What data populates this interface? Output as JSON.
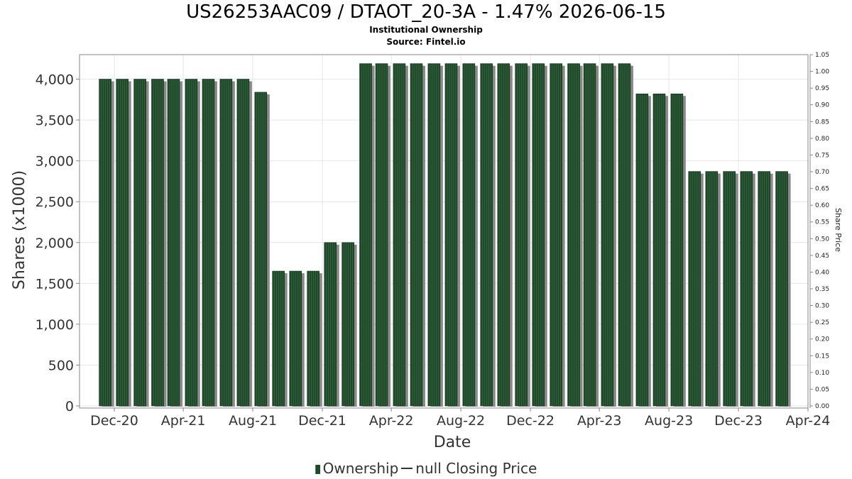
{
  "header": {
    "title": "US26253AAC09 / DTAOT_20-3A - 1.47% 2026-06-15",
    "subtitle": "Institutional Ownership",
    "source": "Source: Fintel.io"
  },
  "legend": {
    "ownership_label": "Ownership",
    "price_label": "null Closing Price"
  },
  "colors": {
    "bar_fill": "#1e4a2a",
    "bar_stripe": "#3f6b48",
    "bar_shadow": "#8a8a8a",
    "grid": "#e6e6e6",
    "axis": "#888888"
  },
  "chart_data": {
    "type": "bar",
    "title": "US26253AAC09 / DTAOT_20-3A - 1.47% 2026-06-15",
    "subtitle": "Institutional Ownership",
    "xlabel": "Date",
    "ylabel": "Shares (x1000)",
    "y2label": "Share Price",
    "ylim": [
      0,
      4300
    ],
    "y2lim": [
      0,
      1.05
    ],
    "xlim": [
      "2020-10-01",
      "2024-04-01"
    ],
    "y_ticks": [
      0,
      500,
      1000,
      1500,
      2000,
      2500,
      3000,
      3500,
      4000
    ],
    "y_tick_labels": [
      "0",
      "500",
      "1,000",
      "1,500",
      "2,000",
      "2,500",
      "3,000",
      "3,500",
      "4,000"
    ],
    "y2_ticks": [
      "0.00",
      "0.05",
      "0.10",
      "0.15",
      "0.20",
      "0.25",
      "0.30",
      "0.35",
      "0.40",
      "0.45",
      "0.50",
      "0.55",
      "0.60",
      "0.65",
      "0.70",
      "0.75",
      "0.80",
      "0.85",
      "0.90",
      "0.95",
      "1.00",
      "1.05"
    ],
    "x_ticks": [
      {
        "date": "2020-12-01",
        "label": "Dec-20"
      },
      {
        "date": "2021-04-01",
        "label": "Apr-21"
      },
      {
        "date": "2021-08-01",
        "label": "Aug-21"
      },
      {
        "date": "2021-12-01",
        "label": "Dec-21"
      },
      {
        "date": "2022-04-01",
        "label": "Apr-22"
      },
      {
        "date": "2022-08-01",
        "label": "Aug-22"
      },
      {
        "date": "2022-12-01",
        "label": "Dec-22"
      },
      {
        "date": "2023-04-01",
        "label": "Apr-23"
      },
      {
        "date": "2023-08-01",
        "label": "Aug-23"
      },
      {
        "date": "2023-12-01",
        "label": "Dec-23"
      },
      {
        "date": "2024-04-01",
        "label": "Apr-24"
      }
    ],
    "grid": true,
    "legend_position": "bottom",
    "series": [
      {
        "name": "Ownership",
        "points": [
          {
            "x": "2020-11-15",
            "y": 4000
          },
          {
            "x": "2020-12-15",
            "y": 4000
          },
          {
            "x": "2021-01-15",
            "y": 4000
          },
          {
            "x": "2021-02-15",
            "y": 4000
          },
          {
            "x": "2021-03-15",
            "y": 4000
          },
          {
            "x": "2021-04-15",
            "y": 4000
          },
          {
            "x": "2021-05-15",
            "y": 4000
          },
          {
            "x": "2021-06-15",
            "y": 4000
          },
          {
            "x": "2021-07-15",
            "y": 4000
          },
          {
            "x": "2021-08-15",
            "y": 3840
          },
          {
            "x": "2021-09-15",
            "y": 1650
          },
          {
            "x": "2021-10-15",
            "y": 1650
          },
          {
            "x": "2021-11-15",
            "y": 1650
          },
          {
            "x": "2021-12-15",
            "y": 2000
          },
          {
            "x": "2022-01-15",
            "y": 2000
          },
          {
            "x": "2022-02-15",
            "y": 4190
          },
          {
            "x": "2022-03-15",
            "y": 4190
          },
          {
            "x": "2022-04-15",
            "y": 4190
          },
          {
            "x": "2022-05-15",
            "y": 4190
          },
          {
            "x": "2022-06-15",
            "y": 4190
          },
          {
            "x": "2022-07-15",
            "y": 4190
          },
          {
            "x": "2022-08-15",
            "y": 4190
          },
          {
            "x": "2022-09-15",
            "y": 4190
          },
          {
            "x": "2022-10-15",
            "y": 4190
          },
          {
            "x": "2022-11-15",
            "y": 4190
          },
          {
            "x": "2022-12-15",
            "y": 4190
          },
          {
            "x": "2023-01-15",
            "y": 4190
          },
          {
            "x": "2023-02-15",
            "y": 4190
          },
          {
            "x": "2023-03-15",
            "y": 4190
          },
          {
            "x": "2023-04-15",
            "y": 4190
          },
          {
            "x": "2023-05-15",
            "y": 4190
          },
          {
            "x": "2023-06-15",
            "y": 3820
          },
          {
            "x": "2023-07-15",
            "y": 3820
          },
          {
            "x": "2023-08-15",
            "y": 3820
          },
          {
            "x": "2023-09-15",
            "y": 2870
          },
          {
            "x": "2023-10-15",
            "y": 2870
          },
          {
            "x": "2023-11-15",
            "y": 2870
          },
          {
            "x": "2023-12-15",
            "y": 2870
          },
          {
            "x": "2024-01-15",
            "y": 2870
          },
          {
            "x": "2024-02-15",
            "y": 2870
          }
        ]
      }
    ]
  }
}
